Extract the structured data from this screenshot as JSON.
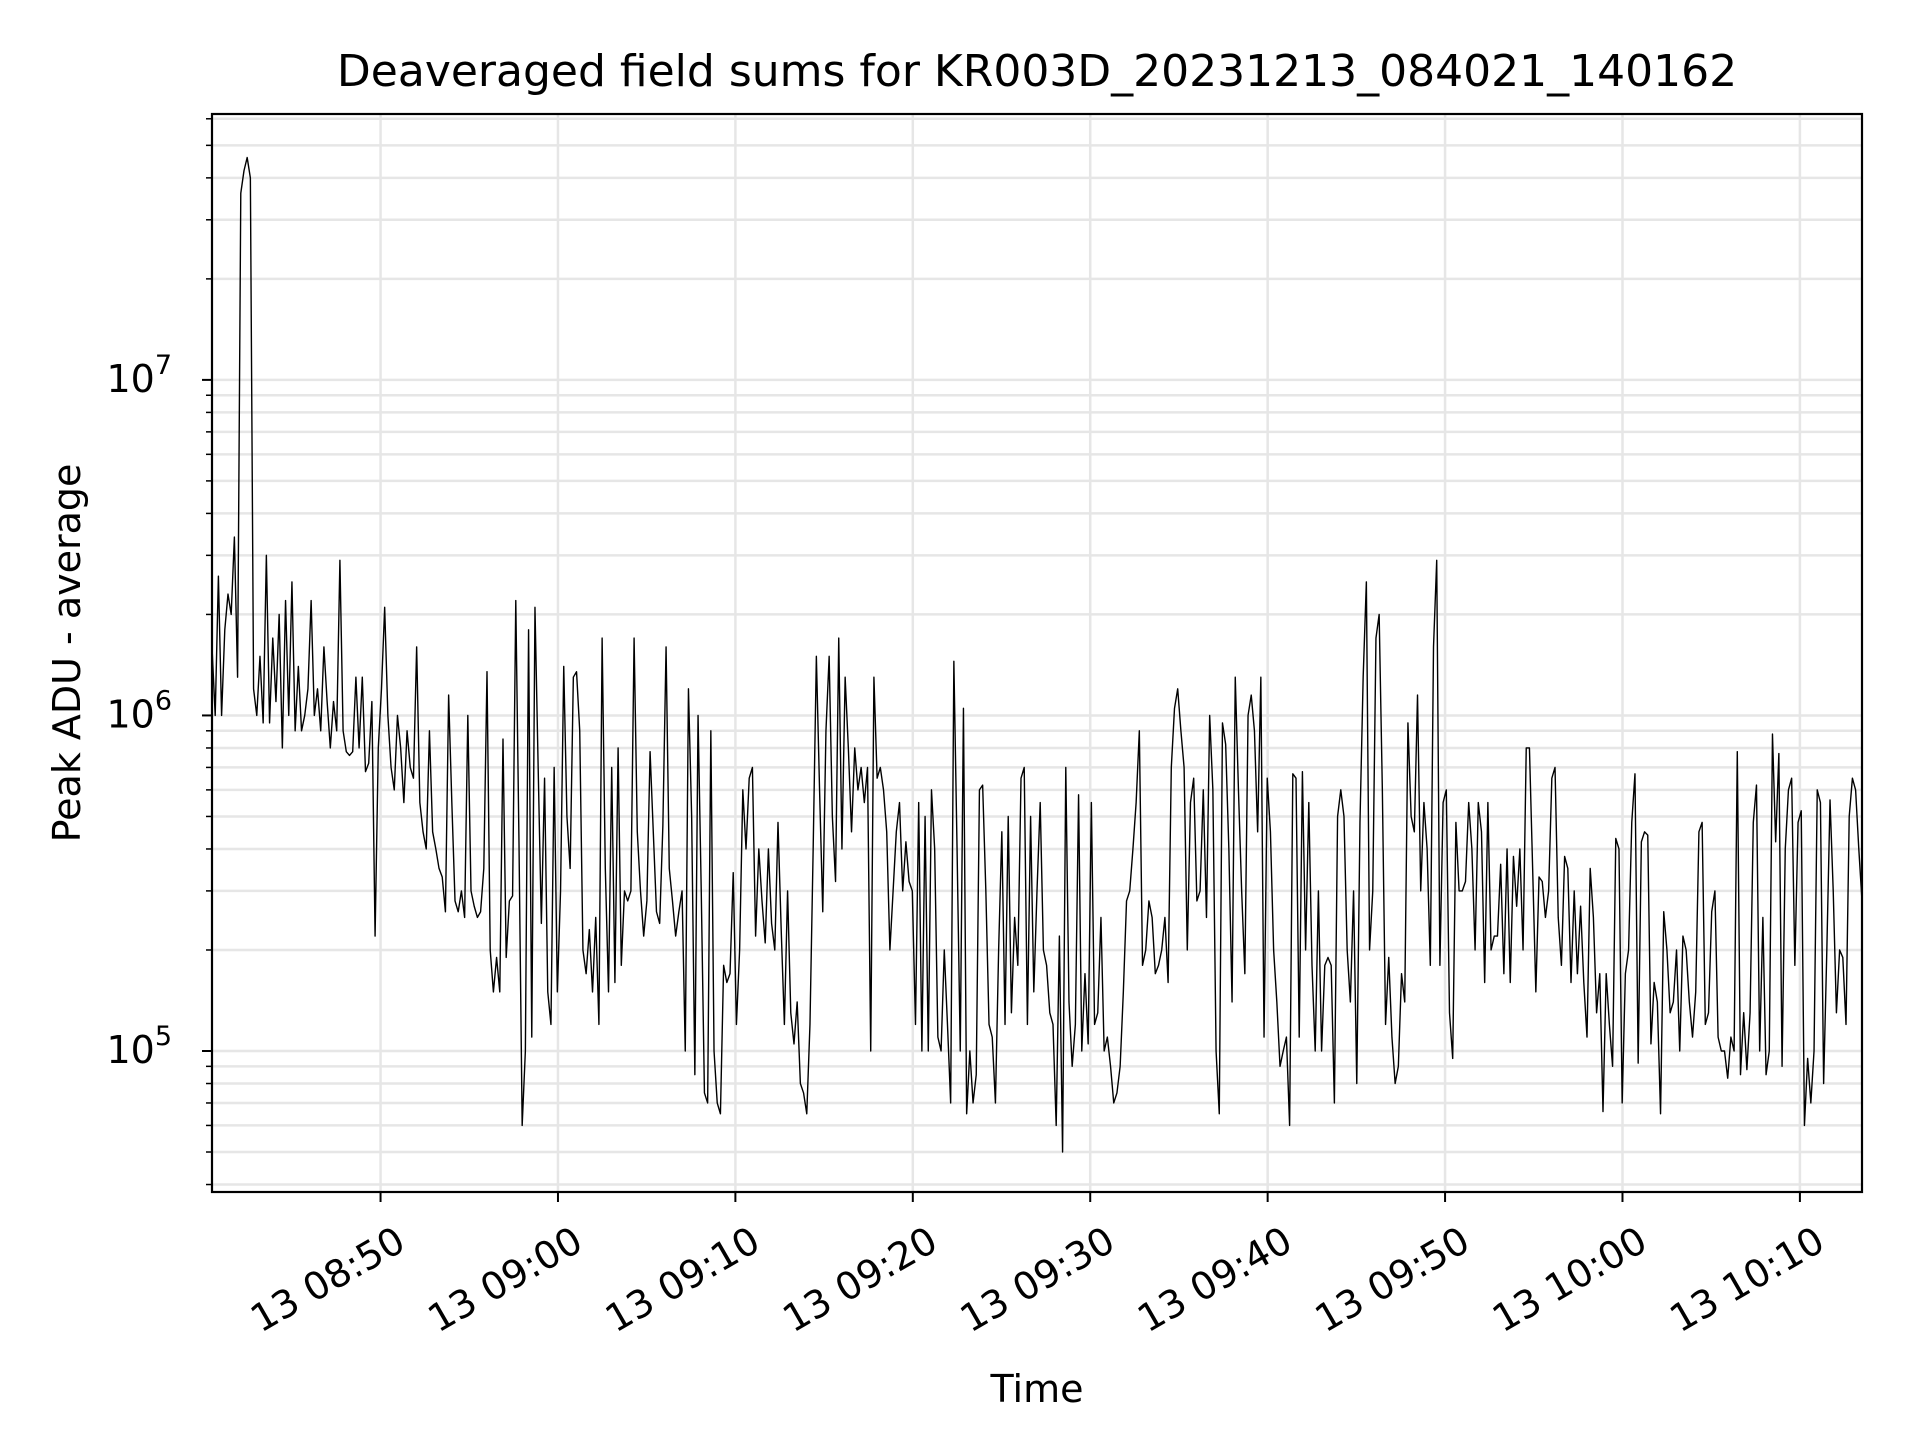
{
  "chart_data": {
    "type": "line",
    "title": "Deaveraged field sums for KR003D_20231213_084021_140162",
    "xlabel": "Time",
    "ylabel": "Peak ADU - average",
    "yscale": "log",
    "grid": true,
    "line_color": "#000000",
    "x_range": [
      "13 08:40:30",
      "13 10:13:30"
    ],
    "ylim": [
      38000,
      62000000
    ],
    "x_ticks": [
      "13 08:50",
      "13 09:00",
      "13 09:10",
      "13 09:20",
      "13 09:30",
      "13 09:40",
      "13 09:50",
      "13 10:00",
      "13 10:10"
    ],
    "y_ticks": [
      {
        "base": "10",
        "exp": "5",
        "value": 100000
      },
      {
        "base": "10",
        "exp": "6",
        "value": 1000000
      },
      {
        "base": "10",
        "exp": "7",
        "value": 10000000
      }
    ],
    "series": [
      {
        "x_start": "13 08:40:30",
        "x_end": "13 10:13:30",
        "values": [
          1600000,
          1000000,
          2600000,
          1000000,
          1800000,
          2300000,
          2000000,
          3400000,
          1300000,
          36000000,
          42000000,
          46000000,
          40000000,
          1200000,
          1000000,
          1500000,
          950000,
          3000000,
          950000,
          1700000,
          1100000,
          2000000,
          800000,
          2200000,
          1000000,
          2500000,
          900000,
          1400000,
          900000,
          1000000,
          1200000,
          2200000,
          1000000,
          1200000,
          900000,
          1600000,
          1100000,
          800000,
          1100000,
          900000,
          2900000,
          900000,
          780000,
          760000,
          780000,
          1300000,
          800000,
          1300000,
          680000,
          720000,
          1100000,
          220000,
          800000,
          1200000,
          2100000,
          1000000,
          700000,
          600000,
          1000000,
          800000,
          550000,
          900000,
          700000,
          650000,
          1600000,
          550000,
          450000,
          400000,
          900000,
          450000,
          400000,
          350000,
          330000,
          260000,
          1150000,
          550000,
          280000,
          260000,
          300000,
          250000,
          1000000,
          300000,
          270000,
          250000,
          260000,
          350000,
          1350000,
          200000,
          150000,
          190000,
          150000,
          850000,
          190000,
          280000,
          290000,
          2200000,
          420000,
          60000,
          100000,
          1800000,
          110000,
          2100000,
          700000,
          240000,
          650000,
          150000,
          120000,
          700000,
          150000,
          300000,
          1400000,
          500000,
          350000,
          1300000,
          1350000,
          900000,
          200000,
          170000,
          230000,
          150000,
          250000,
          120000,
          1700000,
          350000,
          150000,
          700000,
          160000,
          800000,
          180000,
          300000,
          280000,
          300000,
          1700000,
          450000,
          300000,
          220000,
          280000,
          780000,
          450000,
          260000,
          240000,
          470000,
          1600000,
          350000,
          280000,
          220000,
          260000,
          300000,
          100000,
          1200000,
          500000,
          85000,
          1000000,
          300000,
          75000,
          70000,
          900000,
          100000,
          70000,
          65000,
          180000,
          160000,
          170000,
          340000,
          120000,
          200000,
          600000,
          400000,
          650000,
          700000,
          220000,
          400000,
          280000,
          210000,
          400000,
          240000,
          200000,
          480000,
          230000,
          120000,
          300000,
          130000,
          105000,
          140000,
          80000,
          75000,
          65000,
          120000,
          400000,
          1500000,
          600000,
          260000,
          900000,
          1500000,
          500000,
          320000,
          1700000,
          400000,
          1300000,
          800000,
          450000,
          800000,
          600000,
          700000,
          550000,
          700000,
          100000,
          1300000,
          650000,
          700000,
          600000,
          450000,
          200000,
          300000,
          450000,
          550000,
          300000,
          420000,
          320000,
          300000,
          120000,
          550000,
          100000,
          500000,
          100000,
          600000,
          400000,
          110000,
          100000,
          200000,
          120000,
          70000,
          1450000,
          400000,
          100000,
          1050000,
          65000,
          100000,
          70000,
          85000,
          600000,
          620000,
          300000,
          120000,
          110000,
          70000,
          200000,
          450000,
          120000,
          500000,
          130000,
          250000,
          180000,
          650000,
          700000,
          120000,
          500000,
          150000,
          300000,
          550000,
          200000,
          180000,
          130000,
          120000,
          60000,
          220000,
          50000,
          700000,
          140000,
          90000,
          120000,
          580000,
          100000,
          170000,
          105000,
          550000,
          120000,
          130000,
          250000,
          100000,
          110000,
          90000,
          70000,
          75000,
          90000,
          150000,
          280000,
          300000,
          400000,
          550000,
          900000,
          180000,
          200000,
          280000,
          250000,
          170000,
          180000,
          200000,
          250000,
          160000,
          700000,
          1050000,
          1200000,
          900000,
          700000,
          200000,
          550000,
          650000,
          280000,
          300000,
          600000,
          250000,
          1000000,
          600000,
          100000,
          65000,
          950000,
          820000,
          400000,
          140000,
          1300000,
          600000,
          300000,
          170000,
          1000000,
          1150000,
          900000,
          450000,
          1300000,
          110000,
          650000,
          450000,
          200000,
          140000,
          90000,
          100000,
          110000,
          60000,
          670000,
          650000,
          110000,
          680000,
          200000,
          550000,
          180000,
          100000,
          300000,
          100000,
          180000,
          190000,
          180000,
          70000,
          500000,
          600000,
          500000,
          200000,
          140000,
          300000,
          80000,
          480000,
          1300000,
          2500000,
          200000,
          300000,
          1700000,
          2000000,
          600000,
          120000,
          190000,
          110000,
          80000,
          90000,
          170000,
          140000,
          950000,
          500000,
          450000,
          1150000,
          300000,
          550000,
          400000,
          180000,
          1600000,
          2900000,
          180000,
          550000,
          600000,
          130000,
          95000,
          480000,
          300000,
          300000,
          320000,
          550000,
          400000,
          200000,
          550000,
          450000,
          160000,
          550000,
          200000,
          220000,
          220000,
          360000,
          170000,
          400000,
          160000,
          380000,
          270000,
          400000,
          200000,
          800000,
          800000,
          350000,
          150000,
          330000,
          320000,
          250000,
          300000,
          650000,
          700000,
          250000,
          180000,
          380000,
          350000,
          160000,
          300000,
          170000,
          270000,
          160000,
          110000,
          350000,
          250000,
          130000,
          170000,
          66000,
          170000,
          120000,
          90000,
          430000,
          400000,
          70000,
          170000,
          200000,
          480000,
          670000,
          92000,
          420000,
          450000,
          440000,
          105000,
          160000,
          140000,
          65000,
          260000,
          200000,
          130000,
          140000,
          200000,
          100000,
          220000,
          200000,
          140000,
          110000,
          150000,
          450000,
          480000,
          120000,
          130000,
          260000,
          300000,
          110000,
          100000,
          100000,
          83000,
          110000,
          100000,
          780000,
          85000,
          130000,
          88000,
          130000,
          480000,
          620000,
          100000,
          250000,
          85000,
          100000,
          880000,
          420000,
          770000,
          90000,
          400000,
          600000,
          650000,
          180000,
          480000,
          520000,
          60000,
          95000,
          70000,
          100000,
          600000,
          550000,
          80000,
          200000,
          560000,
          300000,
          130000,
          200000,
          190000,
          120000,
          500000,
          650000,
          600000,
          400000,
          280000
        ]
      }
    ]
  }
}
